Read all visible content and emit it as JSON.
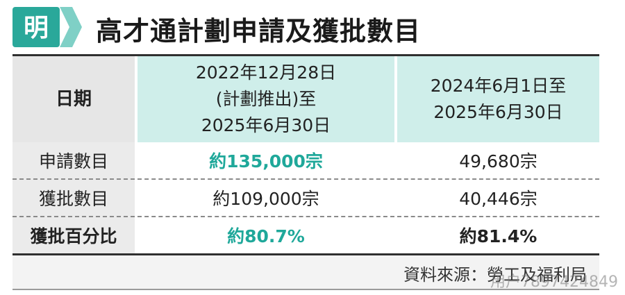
{
  "logo": {
    "char": "明",
    "color": "#2aa89a"
  },
  "title": "高才通計劃申請及獲批數目",
  "table": {
    "header": {
      "label": "日期",
      "col1_lines": [
        "2022年12月28日",
        "(計劃推出)至",
        "2025年6月30日"
      ],
      "col2_lines": [
        "2024年6月1日至",
        "2025年6月30日"
      ]
    },
    "rows": [
      {
        "label": "申請數目",
        "col1": "約135,000宗",
        "col2": "49,680宗"
      },
      {
        "label": "獲批數目",
        "col1": "約109,000宗",
        "col2": "40,446宗"
      },
      {
        "label": "獲批百分比",
        "col1": "約80.7%",
        "col2": "約81.4%"
      }
    ]
  },
  "source": "資料來源：勞工及福利局",
  "watermark": "用户7897424849",
  "colors": {
    "accent": "#1fa89a",
    "header_bg": "#cfeeea"
  }
}
